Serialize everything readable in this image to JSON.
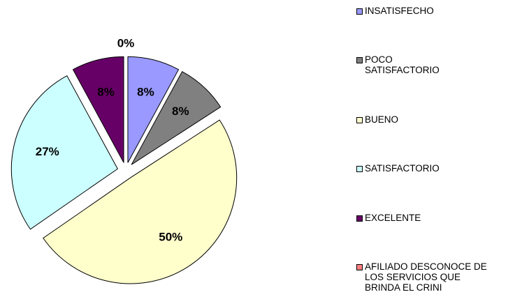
{
  "chart_data": {
    "type": "pie",
    "categories": [
      "INSATISFECHO",
      "POCO SATISFACTORIO",
      "BUENO",
      "SATISFACTORIO",
      "EXCELENTE",
      "AFILIADO DESCONOCE DE LOS SERVICIOS QUE BRINDA EL CRINI"
    ],
    "values": [
      8,
      8,
      50,
      27,
      8,
      0
    ],
    "value_labels": [
      "8%",
      "8%",
      "50%",
      "27%",
      "8%",
      "0%"
    ],
    "colors": [
      "#9999ff",
      "#808080",
      "#ffffcc",
      "#ccffff",
      "#660066",
      "#ff8080"
    ],
    "legend": "right"
  }
}
